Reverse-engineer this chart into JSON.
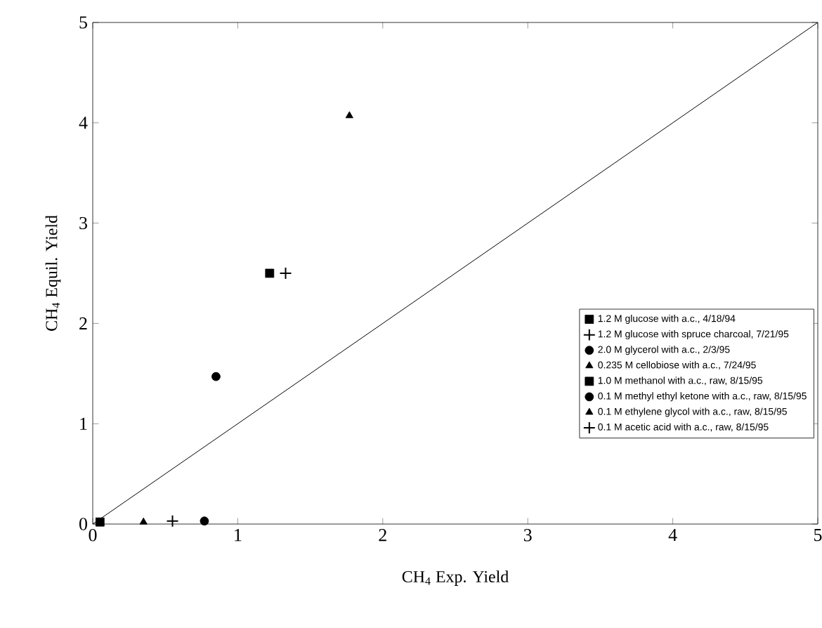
{
  "chart_data": {
    "type": "scatter",
    "xlabel": "CH$_{4}$ Exp. Yield",
    "ylabel": "CH$_{4}$ Equil. Yield",
    "xlim": [
      0,
      5
    ],
    "ylim": [
      0,
      5
    ],
    "xticks": [
      0,
      1,
      2,
      3,
      4,
      5
    ],
    "yticks": [
      0,
      1,
      2,
      3,
      4,
      5
    ],
    "legend": "right",
    "grid": false,
    "series": [
      {
        "name": "1.2 M glucose with a.c., 4/18/94",
        "color": "#000000",
        "marker": "square",
        "x": [
          1.22
        ],
        "values": [
          2.5
        ]
      },
      {
        "name": "1.2 M glucose with spruce charcoal, 7/21/95",
        "color": "#000000",
        "marker": "cross",
        "x": [
          1.33
        ],
        "values": [
          2.5
        ]
      },
      {
        "name": "2.0 M glycerol with a.c., 2/3/95",
        "color": "#000000",
        "marker": "circle",
        "x": [
          0.85
        ],
        "values": [
          1.47
        ]
      },
      {
        "name": "0.235 M cellobiose with a.c., 7/24/95",
        "color": "#000000",
        "marker": "triangle",
        "x": [
          1.77
        ],
        "values": [
          4.07
        ]
      },
      {
        "name": "1.0 M methanol with a.c., raw, 8/15/95",
        "color": "#000000",
        "marker": "square",
        "x": [
          0.05
        ],
        "values": [
          0.02
        ]
      },
      {
        "name": "0.1 M methyl ethyl ketone with a.c., raw, 8/15/95",
        "color": "#000000",
        "marker": "circle",
        "x": [
          0.77
        ],
        "values": [
          0.03
        ]
      },
      {
        "name": "0.1 M ethylene glycol with a.c., raw, 8/15/95",
        "color": "#000000",
        "marker": "triangle",
        "x": [
          0.35
        ],
        "values": [
          0.02
        ]
      },
      {
        "name": "0.1 M acetic acid with a.c., raw, 8/15/95",
        "color": "#000000",
        "marker": "cross",
        "x": [
          0.55
        ],
        "values": [
          0.03
        ]
      },
      {
        "type": "line",
        "color": "#000000",
        "marker": "none",
        "x": [
          0,
          5
        ],
        "values": [
          0,
          5
        ]
      }
    ]
  }
}
